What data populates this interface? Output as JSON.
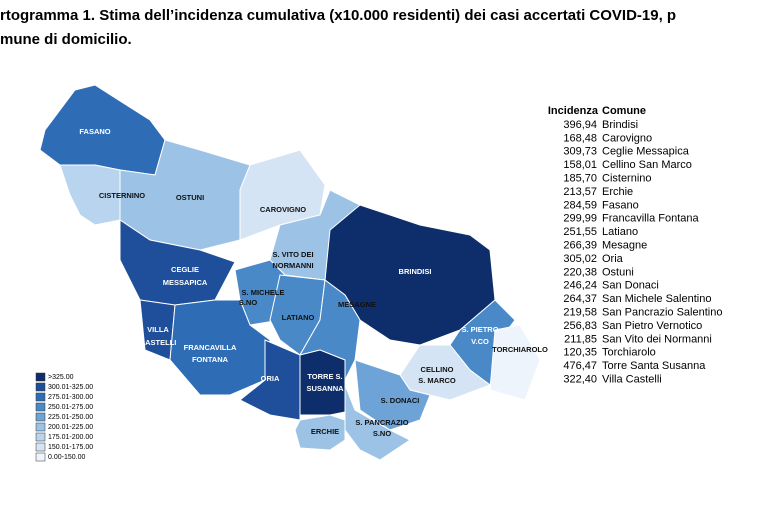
{
  "header": {
    "title_lines": [
      "rtogramma 1. Stima dell’incidenza cumulativa (x10.000 residenti) dei casi accertati COVID-19, p",
      "mune di domicilio."
    ]
  },
  "map": {
    "labels": [
      [
        "FASANO"
      ],
      [
        "CISTERNINO"
      ],
      [
        "OSTUNI"
      ],
      [
        "CAROVIGNO"
      ],
      [
        "BRINDISI"
      ],
      [
        "CEGLIE",
        "MESSAPICA"
      ],
      [
        "S. VITO DEI",
        "NORMANNI"
      ],
      [
        "S. MICHELE",
        "S.NO"
      ],
      [
        "LATIANO"
      ],
      [
        "VILLA",
        "CASTELLI"
      ],
      [
        "FRANCAVILLA",
        "FONTANA"
      ],
      [
        "MESAGNE"
      ],
      [
        "ORIA"
      ],
      [
        "TORRE S.",
        "SUSANNA"
      ],
      [
        "S. PIETRO",
        "V.CO"
      ],
      [
        "TORCHIAROLO"
      ],
      [
        "CELLINO",
        "S. MARCO"
      ],
      [
        "S. DONACI"
      ],
      [
        "ERCHIE"
      ],
      [
        "S. PANCRAZIO",
        "S.NO"
      ]
    ]
  },
  "legend": {
    "classes": [
      ">325.00",
      "300.01-325.00",
      "275.01-300.00",
      "250.01-275.00",
      "225.01-250.00",
      "200.01-225.00",
      "175.01-200.00",
      "150.01-175.00",
      "0.00-150.00"
    ]
  },
  "table": {
    "headers": [
      "Incidenza",
      "Comune"
    ],
    "rows": [
      [
        "396,94",
        "Brindisi"
      ],
      [
        "168,48",
        "Carovigno"
      ],
      [
        "309,73",
        "Ceglie Messapica"
      ],
      [
        "158,01",
        "Cellino San Marco"
      ],
      [
        "185,70",
        "Cisternino"
      ],
      [
        "213,57",
        "Erchie"
      ],
      [
        "284,59",
        "Fasano"
      ],
      [
        "299,99",
        "Francavilla Fontana"
      ],
      [
        "251,55",
        "Latiano"
      ],
      [
        "266,39",
        "Mesagne"
      ],
      [
        "305,02",
        "Oria"
      ],
      [
        "220,38",
        "Ostuni"
      ],
      [
        "246,24",
        "San Donaci"
      ],
      [
        "264,37",
        "San Michele Salentino"
      ],
      [
        "219,58",
        "San Pancrazio Salentino"
      ],
      [
        "256,83",
        "San Pietro Vernotico"
      ],
      [
        "211,85",
        "San Vito dei Normanni"
      ],
      [
        "120,35",
        "Torchiarolo"
      ],
      [
        "476,47",
        "Torre Santa Susanna"
      ],
      [
        "322,40",
        "Villa Castelli"
      ]
    ]
  }
}
